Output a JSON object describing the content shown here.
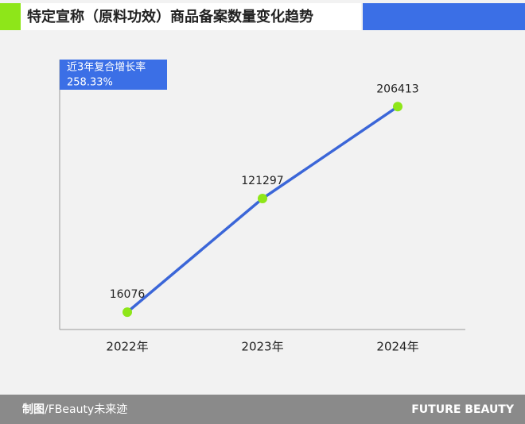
{
  "chart_data": {
    "type": "line",
    "title": "特定宣称（原料功效）商品备案数量变化趋势",
    "categories": [
      "2022年",
      "2023年",
      "2024年"
    ],
    "values": [
      16076,
      121297,
      206413
    ],
    "color": "#3b66d8",
    "marker_color": "#8ee619",
    "ylim": [
      0,
      250000
    ],
    "grid": false,
    "annotation": {
      "label": "近3年复合增长率",
      "value": "258.33%"
    }
  },
  "footer": {
    "credit_label": "制图",
    "credit": "/FBeauty未来迹",
    "brand": "FUTURE BEAUTY"
  }
}
